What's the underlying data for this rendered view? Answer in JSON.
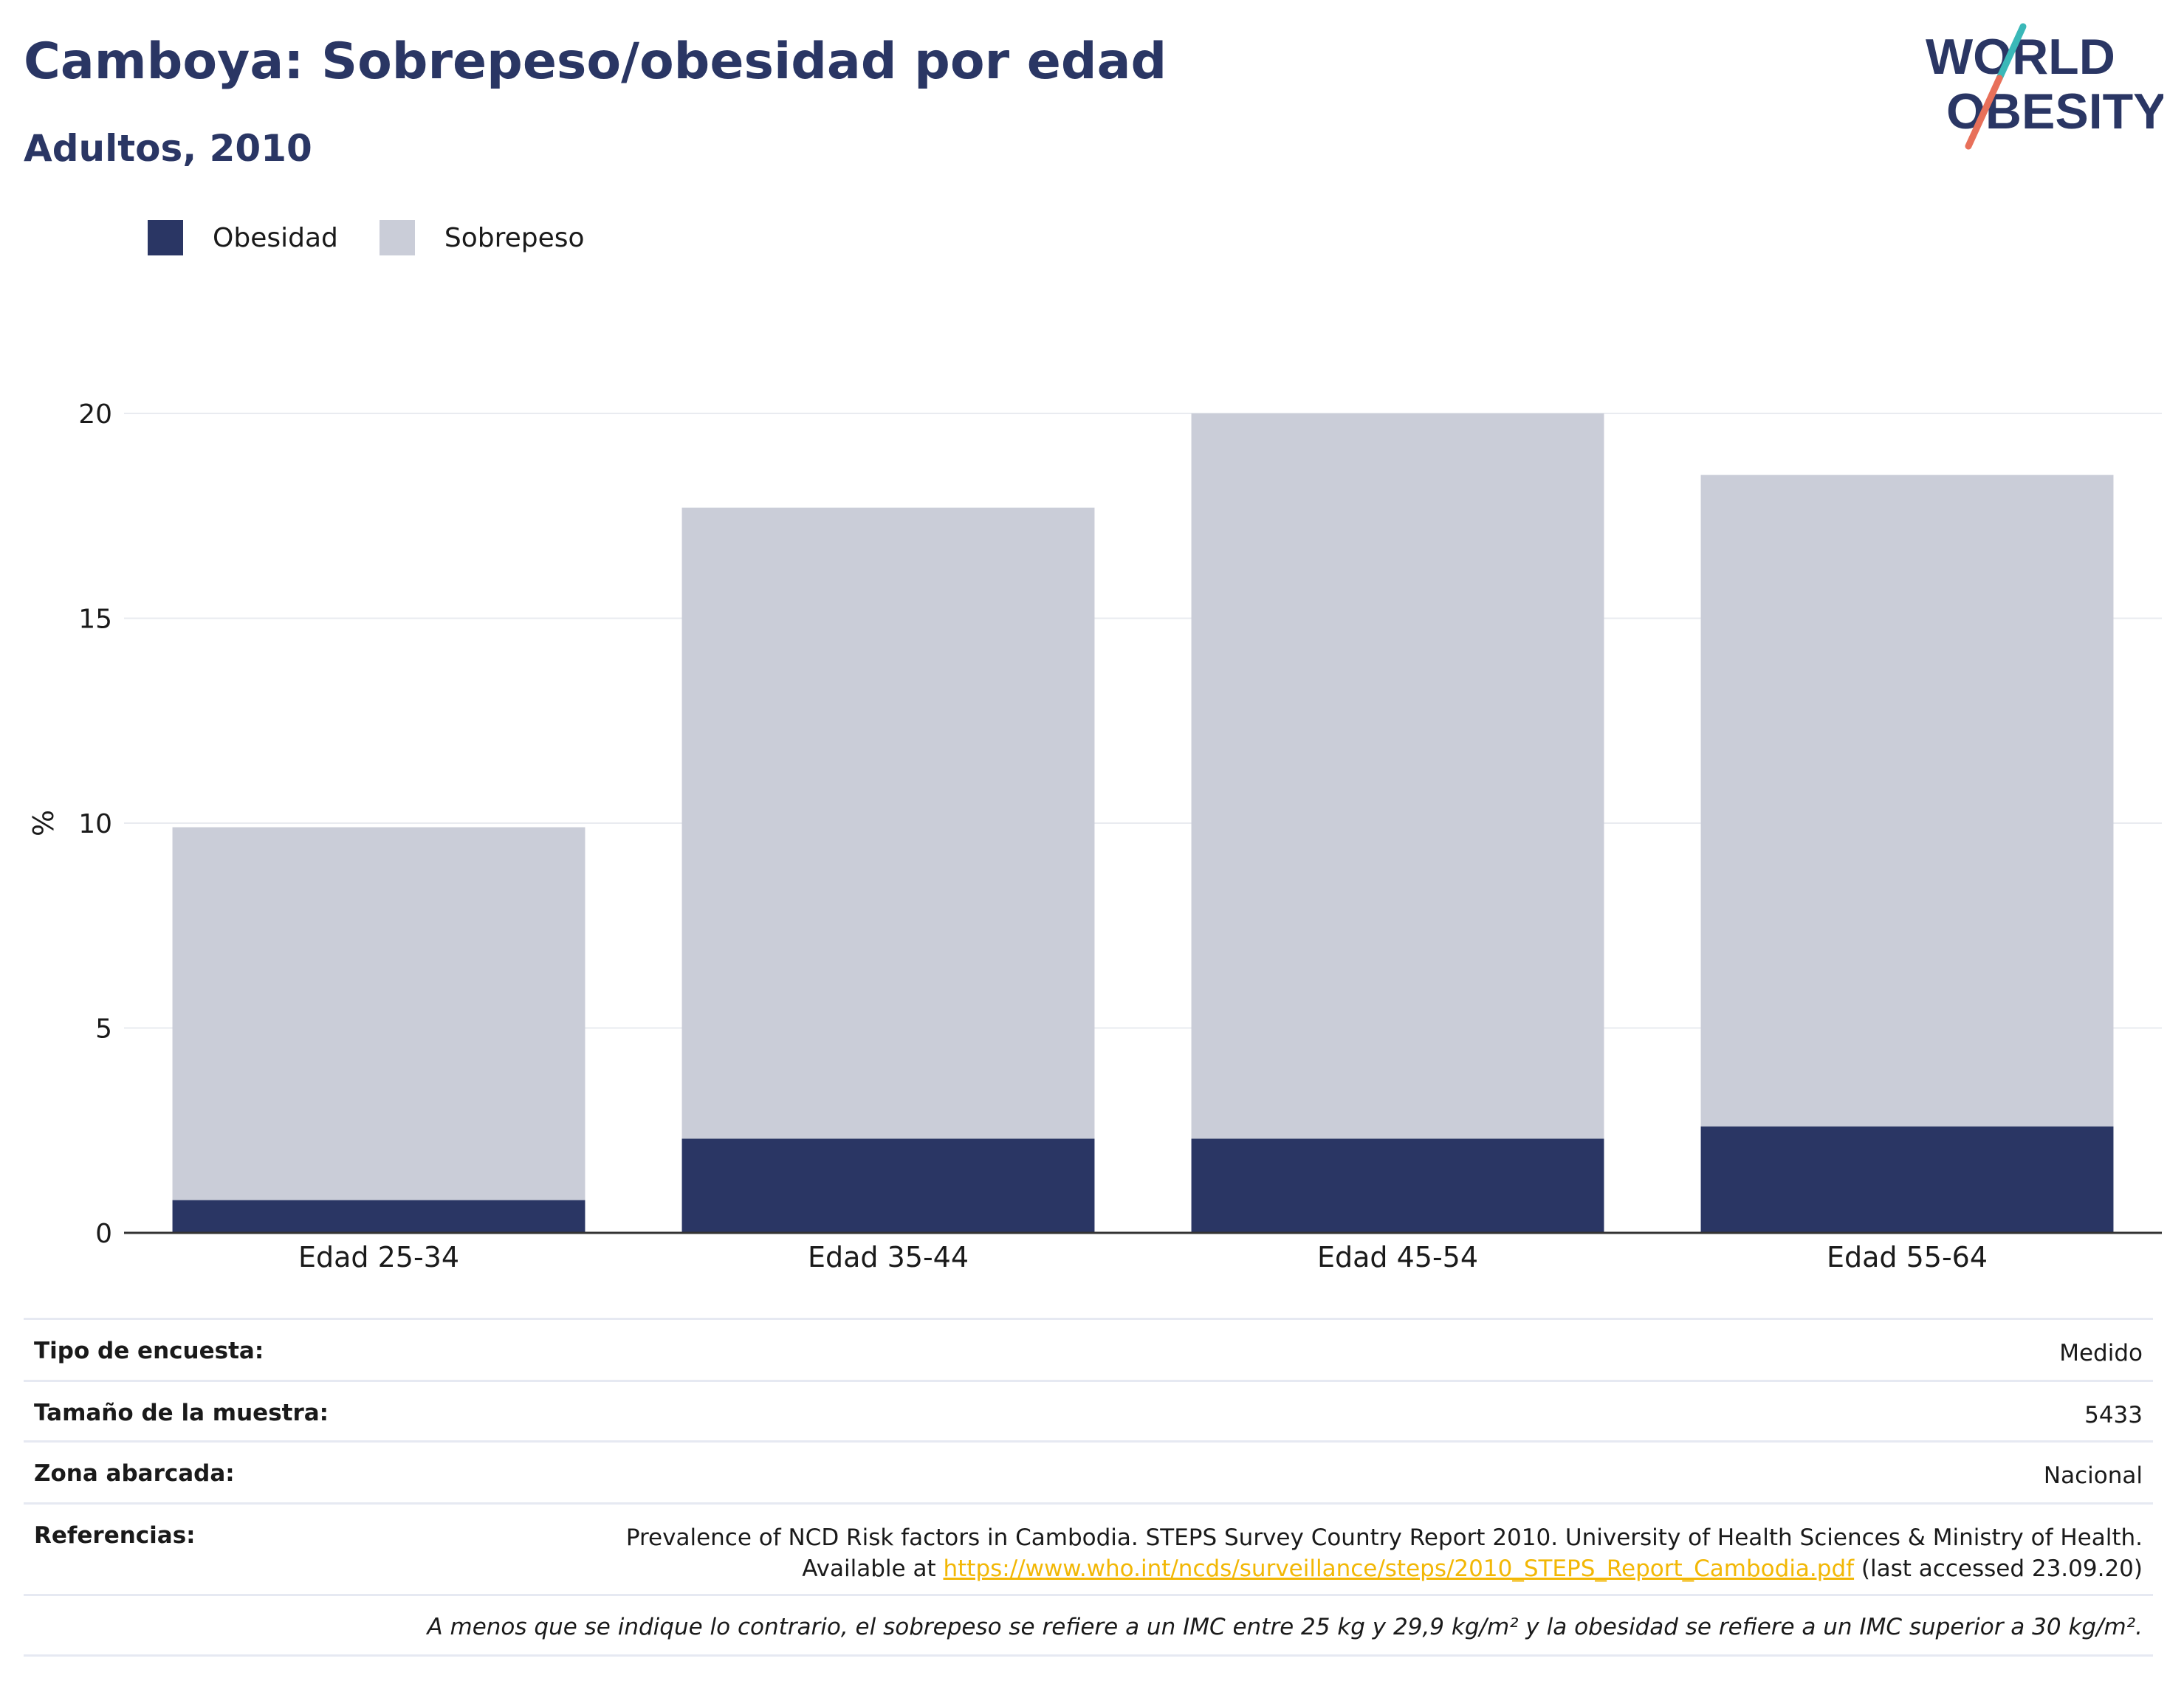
{
  "header": {
    "title": "Camboya: Sobrepeso/obesidad por edad",
    "subtitle": "Adultos, 2010"
  },
  "logo": {
    "line1": "WORLD",
    "line2": "OBESITY",
    "colors": {
      "text": "#2a3664",
      "slash_top": "#3ab8b8",
      "slash_bottom": "#e8705a"
    }
  },
  "colors": {
    "obesidad": "#2a3664",
    "sobrepeso": "#cacdd8",
    "grid": "#e9ebf0",
    "axis": "#333333"
  },
  "chart_data": {
    "type": "bar",
    "stacked": true,
    "categories": [
      "Edad 25-34",
      "Edad 35-44",
      "Edad 45-54",
      "Edad 55-64"
    ],
    "series": [
      {
        "name": "Obesidad",
        "values": [
          0.8,
          2.3,
          2.3,
          2.6
        ],
        "color": "#2a3664"
      },
      {
        "name": "Sobrepeso",
        "values": [
          9.1,
          15.4,
          17.7,
          15.9
        ],
        "color": "#cacdd8"
      }
    ],
    "ylabel": "%",
    "yticks": [
      "0",
      "5",
      "10",
      "15",
      "20"
    ],
    "ylim": [
      0,
      20
    ],
    "grid": true,
    "legend_position": "top-left"
  },
  "info": {
    "survey_type": {
      "label": "Tipo de encuesta:",
      "value": "Medido"
    },
    "sample_size": {
      "label": "Tamaño de la muestra:",
      "value": "5433"
    },
    "area": {
      "label": "Zona abarcada:",
      "value": "Nacional"
    },
    "references": {
      "label": "Referencias:",
      "line1": "Prevalence of NCD Risk factors in Cambodia. STEPS Survey Country Report 2010. University of Health Sciences & Ministry of Health.",
      "prefix": "Available at",
      "link": "https://www.who.int/ncds/surveillance/steps/2010_STEPS_Report_Cambodia.pdf",
      "suffix": "(last accessed 23.09.20)"
    },
    "note": "A menos que se indique lo contrario, el sobrepeso se refiere a un IMC entre 25 kg y 29,9 kg/m² y la obesidad se refiere a un IMC superior a 30 kg/m²."
  }
}
